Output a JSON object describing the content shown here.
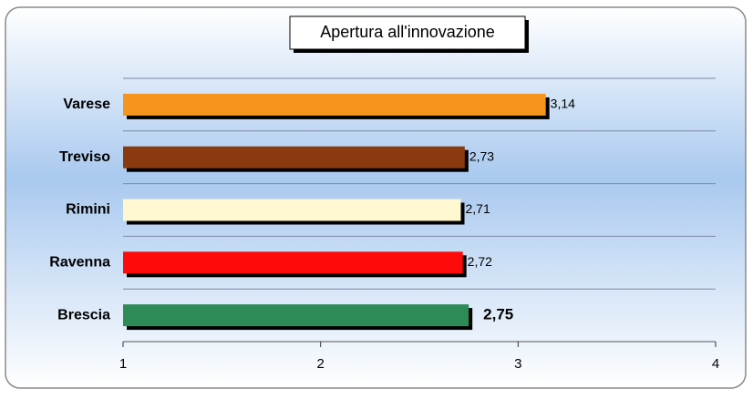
{
  "chart_data": {
    "type": "bar",
    "orientation": "horizontal",
    "title": "Apertura all'innovazione",
    "categories": [
      "Varese",
      "Treviso",
      "Rimini",
      "Ravenna",
      "Brescia"
    ],
    "values": [
      3.14,
      2.73,
      2.71,
      2.72,
      2.75
    ],
    "value_labels": [
      "3,14",
      "2,73",
      "2,71",
      "2,72",
      "2,75"
    ],
    "colors": [
      "#f7941d",
      "#8b3a0f",
      "#fff7cf",
      "#ff0a0a",
      "#2e8b57"
    ],
    "xlim": [
      1,
      4
    ],
    "xticks": [
      1,
      2,
      3,
      4
    ]
  }
}
